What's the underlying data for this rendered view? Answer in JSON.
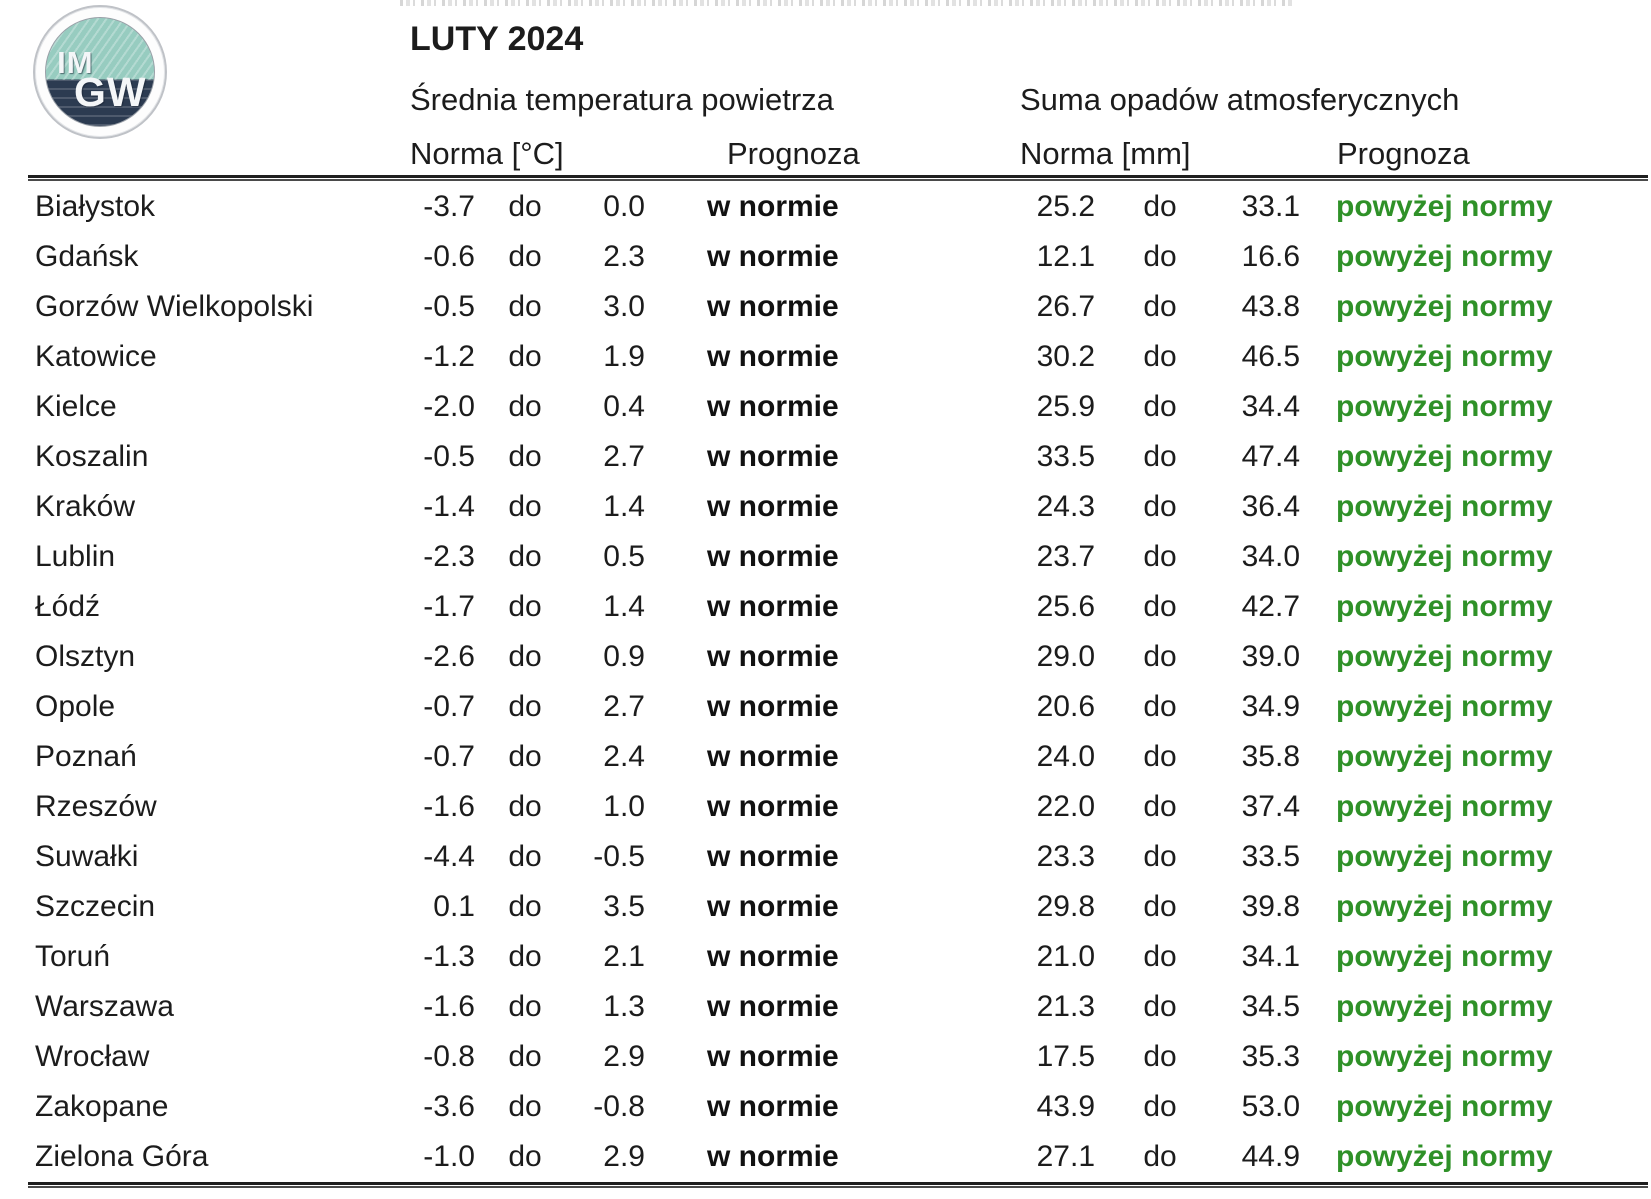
{
  "logo": {
    "line1": "IM",
    "line2": "GW"
  },
  "header": {
    "title": "LUTY 2024",
    "temperature_section": "Średnia temperatura powietrza",
    "precipitation_section": "Suma opadów atmosferycznych",
    "temp_norm_label": "Norma [°C]",
    "temp_forecast_label": "Prognoza",
    "precip_norm_label": "Norma [mm]",
    "precip_forecast_label": "Prognoza"
  },
  "range_separator": "do",
  "colors": {
    "forecast_above_normal_green": "#2f9128",
    "text_black": "#1c1c1c",
    "logo_land_teal": "#97ccc0",
    "logo_sea_navy": "#2c3b51"
  },
  "rows": [
    {
      "city": "Białystok",
      "temp_min": "-3.7",
      "temp_max": "0.0",
      "temp_forecast": "w normie",
      "precip_min": "25.2",
      "precip_max": "33.1",
      "precip_forecast": "powyżej normy"
    },
    {
      "city": "Gdańsk",
      "temp_min": "-0.6",
      "temp_max": "2.3",
      "temp_forecast": "w normie",
      "precip_min": "12.1",
      "precip_max": "16.6",
      "precip_forecast": "powyżej normy"
    },
    {
      "city": "Gorzów Wielkopolski",
      "temp_min": "-0.5",
      "temp_max": "3.0",
      "temp_forecast": "w normie",
      "precip_min": "26.7",
      "precip_max": "43.8",
      "precip_forecast": "powyżej normy"
    },
    {
      "city": "Katowice",
      "temp_min": "-1.2",
      "temp_max": "1.9",
      "temp_forecast": "w normie",
      "precip_min": "30.2",
      "precip_max": "46.5",
      "precip_forecast": "powyżej normy"
    },
    {
      "city": "Kielce",
      "temp_min": "-2.0",
      "temp_max": "0.4",
      "temp_forecast": "w normie",
      "precip_min": "25.9",
      "precip_max": "34.4",
      "precip_forecast": "powyżej normy"
    },
    {
      "city": "Koszalin",
      "temp_min": "-0.5",
      "temp_max": "2.7",
      "temp_forecast": "w normie",
      "precip_min": "33.5",
      "precip_max": "47.4",
      "precip_forecast": "powyżej normy"
    },
    {
      "city": "Kraków",
      "temp_min": "-1.4",
      "temp_max": "1.4",
      "temp_forecast": "w normie",
      "precip_min": "24.3",
      "precip_max": "36.4",
      "precip_forecast": "powyżej normy"
    },
    {
      "city": "Lublin",
      "temp_min": "-2.3",
      "temp_max": "0.5",
      "temp_forecast": "w normie",
      "precip_min": "23.7",
      "precip_max": "34.0",
      "precip_forecast": "powyżej normy"
    },
    {
      "city": "Łódź",
      "temp_min": "-1.7",
      "temp_max": "1.4",
      "temp_forecast": "w normie",
      "precip_min": "25.6",
      "precip_max": "42.7",
      "precip_forecast": "powyżej normy"
    },
    {
      "city": "Olsztyn",
      "temp_min": "-2.6",
      "temp_max": "0.9",
      "temp_forecast": "w normie",
      "precip_min": "29.0",
      "precip_max": "39.0",
      "precip_forecast": "powyżej normy"
    },
    {
      "city": "Opole",
      "temp_min": "-0.7",
      "temp_max": "2.7",
      "temp_forecast": "w normie",
      "precip_min": "20.6",
      "precip_max": "34.9",
      "precip_forecast": "powyżej normy"
    },
    {
      "city": "Poznań",
      "temp_min": "-0.7",
      "temp_max": "2.4",
      "temp_forecast": "w normie",
      "precip_min": "24.0",
      "precip_max": "35.8",
      "precip_forecast": "powyżej normy"
    },
    {
      "city": "Rzeszów",
      "temp_min": "-1.6",
      "temp_max": "1.0",
      "temp_forecast": "w normie",
      "precip_min": "22.0",
      "precip_max": "37.4",
      "precip_forecast": "powyżej normy"
    },
    {
      "city": "Suwałki",
      "temp_min": "-4.4",
      "temp_max": "-0.5",
      "temp_forecast": "w normie",
      "precip_min": "23.3",
      "precip_max": "33.5",
      "precip_forecast": "powyżej normy"
    },
    {
      "city": "Szczecin",
      "temp_min": "0.1",
      "temp_max": "3.5",
      "temp_forecast": "w normie",
      "precip_min": "29.8",
      "precip_max": "39.8",
      "precip_forecast": "powyżej normy"
    },
    {
      "city": "Toruń",
      "temp_min": "-1.3",
      "temp_max": "2.1",
      "temp_forecast": "w normie",
      "precip_min": "21.0",
      "precip_max": "34.1",
      "precip_forecast": "powyżej normy"
    },
    {
      "city": "Warszawa",
      "temp_min": "-1.6",
      "temp_max": "1.3",
      "temp_forecast": "w normie",
      "precip_min": "21.3",
      "precip_max": "34.5",
      "precip_forecast": "powyżej normy"
    },
    {
      "city": "Wrocław",
      "temp_min": "-0.8",
      "temp_max": "2.9",
      "temp_forecast": "w normie",
      "precip_min": "17.5",
      "precip_max": "35.3",
      "precip_forecast": "powyżej normy"
    },
    {
      "city": "Zakopane",
      "temp_min": "-3.6",
      "temp_max": "-0.8",
      "temp_forecast": "w normie",
      "precip_min": "43.9",
      "precip_max": "53.0",
      "precip_forecast": "powyżej normy"
    },
    {
      "city": "Zielona Góra",
      "temp_min": "-1.0",
      "temp_max": "2.9",
      "temp_forecast": "w normie",
      "precip_min": "27.1",
      "precip_max": "44.9",
      "precip_forecast": "powyżej normy"
    }
  ]
}
